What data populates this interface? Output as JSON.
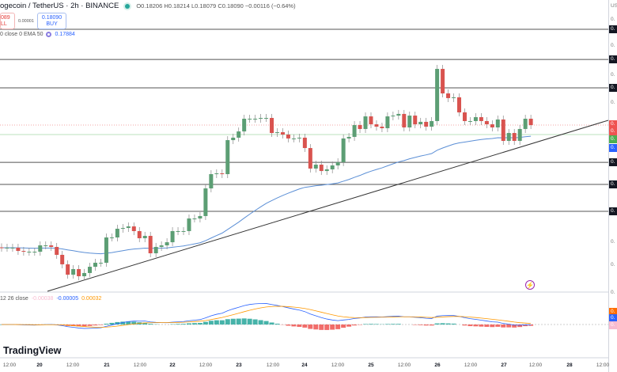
{
  "header": {
    "symbol": "ogecoin / TetherUS · 2h · BINANCE",
    "ohlc": "O0.18206 H0.18214 L0.18079 C0.18090 −0.00116 (−0.64%)"
  },
  "trade": {
    "sell_price": "089",
    "sell_label": "LL",
    "spread": "0.00001",
    "buy_price": "0.18090",
    "buy_label": "BUY"
  },
  "ema": {
    "label": "0 close 0 EMA 50",
    "value": "0.17884"
  },
  "macd": {
    "label": "12 26 close",
    "hist": "-0.00038",
    "macd": "-0.00005",
    "signal": "0.00032"
  },
  "logo": "TradingView",
  "price_axis": {
    "currency": "US",
    "tick": "0.",
    "colors": {
      "last": "#ef5350",
      "green": "#4caf50",
      "ema": "#2962ff",
      "macd_signal": "#ff6d00",
      "macd": "#2962ff",
      "hist": "#f8bbd0"
    }
  },
  "chart_data": {
    "type": "candlestick",
    "interval": "2h",
    "x_ticks": [
      "12:00",
      "20",
      "12:00",
      "21",
      "12:00",
      "22",
      "12:00",
      "23",
      "12:00",
      "24",
      "12:00",
      "25",
      "12:00",
      "26",
      "12:00",
      "27",
      "12:00",
      "28",
      "12:00"
    ],
    "closes": [
      0.1699,
      0.1699,
      0.1699,
      0.16961,
      0.16954,
      0.16954,
      0.16954,
      0.17011,
      0.17011,
      0.16997,
      0.16926,
      0.16841,
      0.16748,
      0.16798,
      0.16734,
      0.16763,
      0.16819,
      0.16855,
      0.16855,
      0.17082,
      0.17082,
      0.1716,
      0.17167,
      0.17181,
      0.17139,
      0.17075,
      0.17096,
      0.1694,
      0.16997,
      0.17011,
      0.17039,
      0.17139,
      0.17139,
      0.17139,
      0.17252,
      0.17252,
      0.17274,
      0.17522,
      0.1765,
      0.17657,
      0.1765,
      0.17955,
      0.17977,
      0.18033,
      0.18147,
      0.18147,
      0.18147,
      0.18154,
      0.18154,
      0.18019,
      0.18026,
      0.18005,
      0.1797,
      0.1797,
      0.17977,
      0.17884,
      0.177,
      0.17735,
      0.17678,
      0.17693,
      0.17728,
      0.17757,
      0.1797,
      0.17984,
      0.1809,
      0.18055,
      0.18168,
      0.18097,
      0.18076,
      0.18062,
      0.18168,
      0.18175,
      0.1819,
      0.18069,
      0.18175,
      0.18097,
      0.18119,
      0.18076,
      0.18126,
      0.18594,
      0.18374,
      0.18332,
      0.18339,
      0.18204,
      0.18126,
      0.18126,
      0.18161,
      0.18126,
      0.18097,
      0.18069,
      0.1814,
      0.17948,
      0.18019,
      0.17948,
      0.18055,
      0.18147,
      0.1809
    ],
    "last_price": 0.1809,
    "ema50_last": 0.17884,
    "horizontal_levels": [
      0.18949,
      0.18679,
      0.18424,
      0.17756,
      0.17558,
      0.17316
    ],
    "up_color": "#26a69a",
    "down_color": "#ef5350"
  }
}
